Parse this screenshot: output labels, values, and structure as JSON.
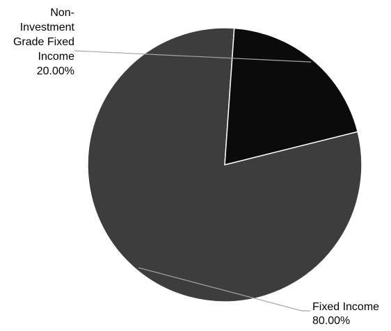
{
  "chart_data": {
    "type": "pie",
    "start_angle_deg": 4,
    "direction": "counterclockwise",
    "slices": [
      {
        "label_lines": [
          "Fixed Income",
          "80.00%"
        ],
        "category": "Fixed Income",
        "value": 80.0,
        "value_label": "80.00%",
        "color": "#3d3d3d"
      },
      {
        "label_lines": [
          "Non-",
          "Investment",
          "Grade Fixed",
          "Income",
          "20.00%"
        ],
        "category": "Non-Investment Grade Fixed Income",
        "value": 20.0,
        "value_label": "20.00%",
        "color": "#0b0b0b"
      }
    ],
    "legend": "none",
    "border_color": "#ffffff"
  }
}
